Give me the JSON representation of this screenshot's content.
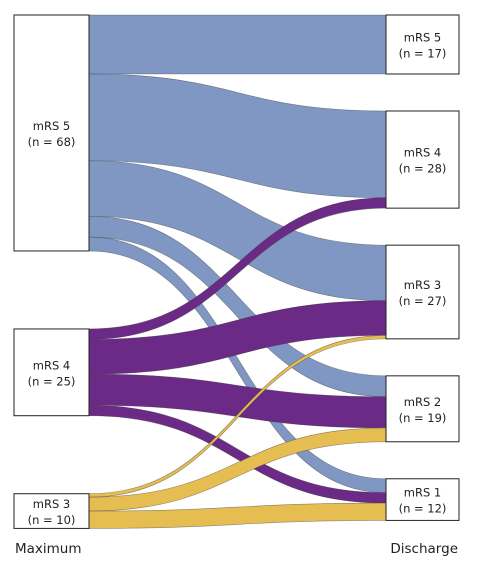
{
  "axis": {
    "left_label": "Maximum",
    "right_label": "Discharge"
  },
  "colors": {
    "mRS 5": "#7f97c2",
    "mRS 4": "#6a2a86",
    "mRS 3": "#e5bd51",
    "node_border": "#222222"
  },
  "nodes": {
    "left": [
      {
        "id": "L5",
        "name": "mRS 5",
        "count": "(n = 68)"
      },
      {
        "id": "L4",
        "name": "mRS 4",
        "count": "(n = 25)"
      },
      {
        "id": "L3",
        "name": "mRS 3",
        "count": "(n = 10)"
      }
    ],
    "right": [
      {
        "id": "R5",
        "name": "mRS 5",
        "count": "(n = 17)"
      },
      {
        "id": "R4",
        "name": "mRS 4",
        "count": "(n = 28)"
      },
      {
        "id": "R3",
        "name": "mRS 3",
        "count": "(n = 27)"
      },
      {
        "id": "R2",
        "name": "mRS 2",
        "count": "(n = 19)"
      },
      {
        "id": "R1",
        "name": "mRS 1",
        "count": "(n = 12)"
      }
    ]
  },
  "flows": [
    {
      "from": "L5",
      "to": "R5",
      "value": 17,
      "color_key": "mRS 5"
    },
    {
      "from": "L5",
      "to": "R4",
      "value": 25,
      "color_key": "mRS 5"
    },
    {
      "from": "L5",
      "to": "R3",
      "value": 16,
      "color_key": "mRS 5"
    },
    {
      "from": "L5",
      "to": "R2",
      "value": 6,
      "color_key": "mRS 5"
    },
    {
      "from": "L5",
      "to": "R1",
      "value": 4,
      "color_key": "mRS 5"
    },
    {
      "from": "L4",
      "to": "R4",
      "value": 3,
      "color_key": "mRS 4"
    },
    {
      "from": "L4",
      "to": "R3",
      "value": 10,
      "color_key": "mRS 4"
    },
    {
      "from": "L4",
      "to": "R2",
      "value": 9,
      "color_key": "mRS 4"
    },
    {
      "from": "L4",
      "to": "R1",
      "value": 3,
      "color_key": "mRS 4"
    },
    {
      "from": "L3",
      "to": "R3",
      "value": 1,
      "color_key": "mRS 3"
    },
    {
      "from": "L3",
      "to": "R2",
      "value": 4,
      "color_key": "mRS 3"
    },
    {
      "from": "L3",
      "to": "R1",
      "value": 5,
      "color_key": "mRS 3"
    }
  ]
}
